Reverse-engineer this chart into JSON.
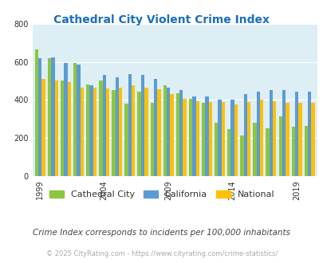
{
  "title": "Cathedral City Violent Crime Index",
  "title_color": "#1a6fbb",
  "subtitle": "Crime Index corresponds to incidents per 100,000 inhabitants",
  "subtitle_color": "#444444",
  "copyright": "© 2025 CityRating.com - https://www.cityrating.com/crime-statistics/",
  "copyright_color": "#aaaaaa",
  "years": [
    1999,
    2000,
    2001,
    2002,
    2003,
    2004,
    2005,
    2006,
    2007,
    2008,
    2009,
    2010,
    2011,
    2012,
    2013,
    2014,
    2015,
    2016,
    2017,
    2018,
    2019,
    2020
  ],
  "cathedral_city": [
    665,
    620,
    500,
    595,
    480,
    500,
    450,
    380,
    445,
    385,
    475,
    435,
    405,
    385,
    280,
    245,
    215,
    280,
    250,
    315,
    260,
    265
  ],
  "california": [
    620,
    625,
    595,
    585,
    475,
    530,
    520,
    535,
    530,
    510,
    465,
    450,
    420,
    420,
    400,
    400,
    430,
    445,
    450,
    450,
    445,
    445
  ],
  "national": [
    510,
    500,
    495,
    465,
    465,
    460,
    465,
    475,
    465,
    455,
    430,
    405,
    395,
    390,
    390,
    375,
    390,
    400,
    395,
    385,
    385,
    385
  ],
  "cathedral_color": "#8dc63f",
  "california_color": "#5b9bd5",
  "national_color": "#ffc000",
  "bg_color": "#ddeef5",
  "fig_bg_color": "#ffffff",
  "ylim": [
    0,
    800
  ],
  "yticks": [
    0,
    200,
    400,
    600,
    800
  ],
  "shown_years": [
    1999,
    2004,
    2009,
    2014,
    2019
  ],
  "legend_labels": [
    "Cathedral City",
    "California",
    "National"
  ],
  "bar_width": 0.27
}
